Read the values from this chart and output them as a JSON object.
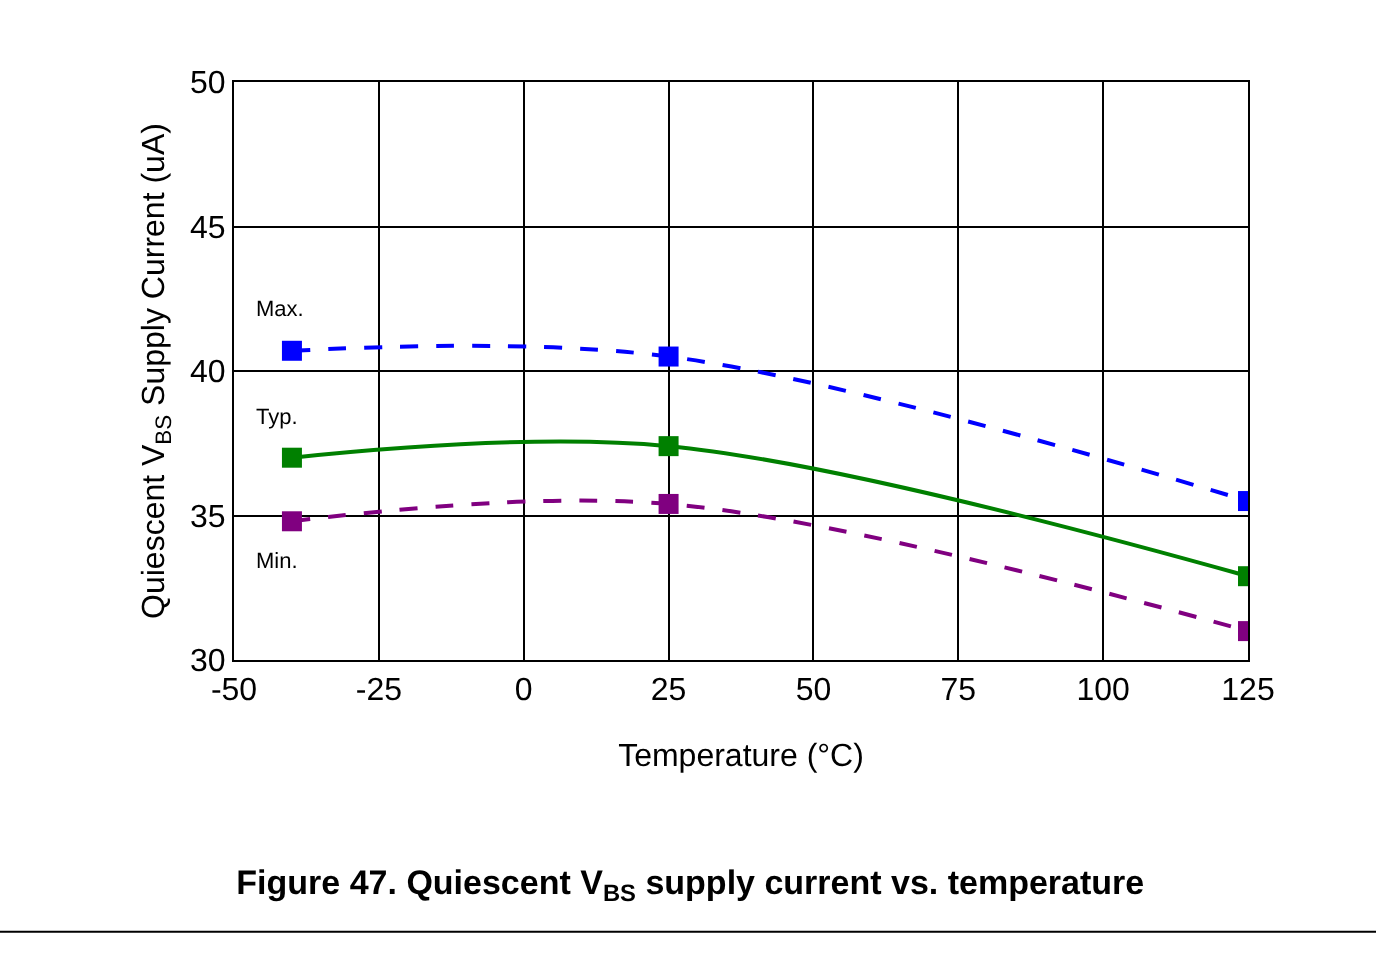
{
  "chart_data": {
    "type": "line",
    "title": "Figure 47. Quiescent V$_{BS}$ supply current vs. temperature",
    "xlabel": "Temperature (°C)",
    "ylabel": "Quiescent V$_{BS}$ Supply Current (uA)",
    "x": [
      -40,
      25,
      125
    ],
    "series": [
      {
        "name": "Max.",
        "color": "#0000ff",
        "values": [
          40.7,
          40.5,
          35.5
        ],
        "line_style": "dashed"
      },
      {
        "name": "Typ.",
        "color": "#008000",
        "values": [
          37.0,
          37.4,
          32.9
        ],
        "line_style": "solid"
      },
      {
        "name": "Min.",
        "color": "#800080",
        "values": [
          34.8,
          35.4,
          31.0
        ],
        "line_style": "dashed"
      }
    ],
    "xlim": [
      -50,
      125
    ],
    "xticks": [
      -50,
      -25,
      0,
      25,
      50,
      75,
      100,
      125
    ],
    "ylim": [
      30,
      50
    ],
    "yticks": [
      30,
      35,
      40,
      45,
      50
    ],
    "grid": true,
    "legend": false,
    "marker": "square"
  }
}
